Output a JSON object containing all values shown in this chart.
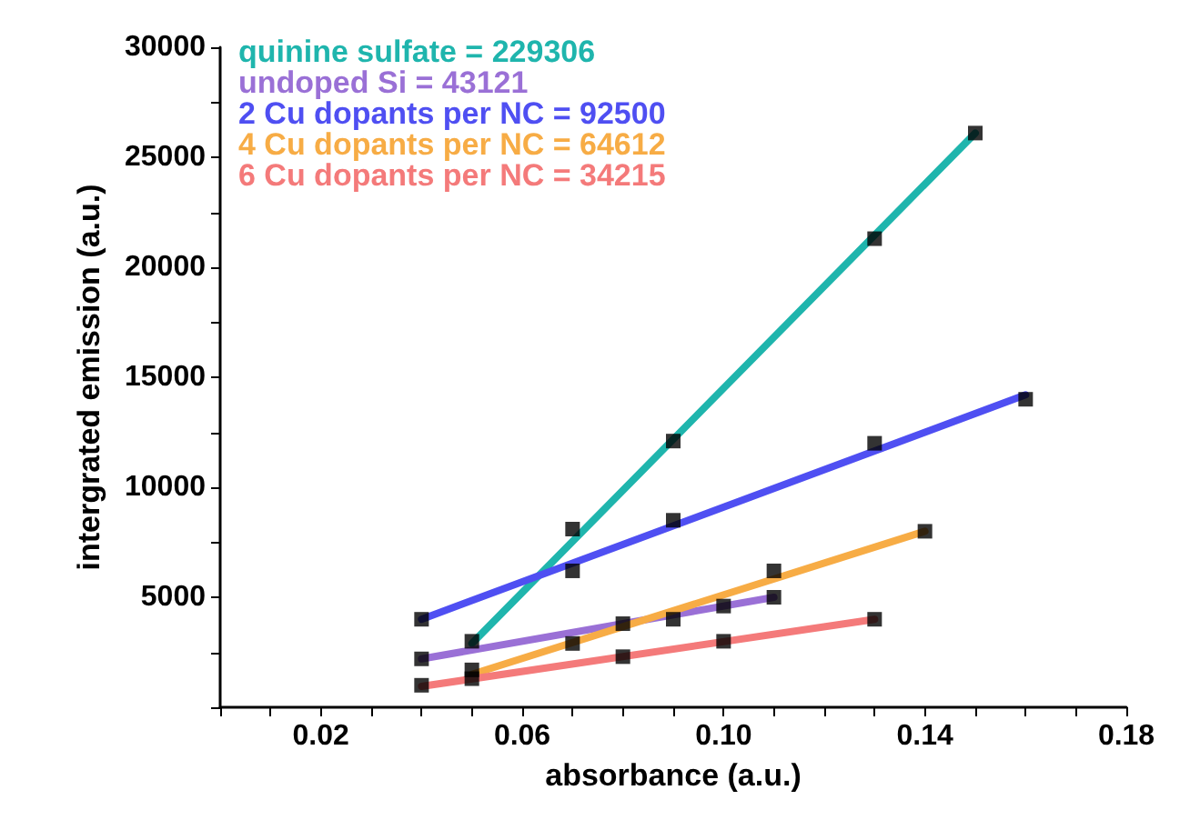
{
  "chart_data": {
    "type": "scatter",
    "xlabel": "absorbance (a.u.)",
    "ylabel": "intergrated emission (a.u.)",
    "xlim": [
      0,
      0.18
    ],
    "ylim": [
      0,
      30000
    ],
    "xticks": [
      {
        "value": 0,
        "label": null
      },
      {
        "value": 0.01,
        "label": null
      },
      "0.02",
      {
        "value": 0.03,
        "label": null
      },
      {
        "value": 0.04,
        "label": null
      },
      {
        "value": 0.05,
        "label": null
      },
      {
        "value": 0.06,
        "label": "0.06"
      },
      {
        "value": 0.07,
        "label": null
      },
      {
        "value": 0.08,
        "label": null
      },
      {
        "value": 0.09,
        "label": null
      },
      {
        "value": 0.1,
        "label": "0.10"
      },
      {
        "value": 0.11,
        "label": null
      },
      {
        "value": 0.12,
        "label": null
      },
      {
        "value": 0.13,
        "label": null
      },
      {
        "value": 0.14,
        "label": "0.14"
      },
      {
        "value": 0.15,
        "label": null
      },
      {
        "value": 0.16,
        "label": null
      },
      {
        "value": 0.17,
        "label": null
      },
      {
        "value": 0.18,
        "label": "0.18"
      }
    ],
    "yticks": [
      {
        "value": 0,
        "label": null
      },
      {
        "value": 2500,
        "label": null
      },
      5000,
      {
        "value": 7500,
        "label": null
      },
      10000,
      {
        "value": 12500,
        "label": null
      },
      15000,
      {
        "value": 17500,
        "label": null
      },
      20000,
      {
        "value": 22500,
        "label": null
      },
      25000,
      {
        "value": 27500,
        "label": null
      },
      30000
    ],
    "grid": false,
    "legend": "top left",
    "marker": "square",
    "series": [
      {
        "type": "line",
        "name": "quinine sulfate = 229306",
        "color": "#1fb5ad",
        "marker": "none",
        "x": [
          0.05,
          0.15
        ],
        "values": [
          2900,
          26100
        ]
      },
      {
        "type": "line",
        "name": "undoped Si = 43121",
        "color": "#9a70d6",
        "marker": "none",
        "x": [
          0.04,
          0.11
        ],
        "values": [
          2200,
          5000
        ]
      },
      {
        "type": "line",
        "name": "2 Cu dopants per NC = 92500",
        "color": "#4f4ff2",
        "marker": "none",
        "x": [
          0.04,
          0.16
        ],
        "values": [
          4000,
          14200
        ]
      },
      {
        "type": "line",
        "name": "4 Cu dopants per NC = 64612",
        "color": "#f7ac45",
        "marker": "none",
        "x": [
          0.05,
          0.14
        ],
        "values": [
          1500,
          8000
        ]
      },
      {
        "type": "line",
        "name": "6 Cu dopants per NC = 34215",
        "color": "#f47a7a",
        "marker": "none",
        "x": [
          0.04,
          0.13
        ],
        "values": [
          950,
          4000
        ]
      },
      {
        "color": "#000000",
        "x": [
          0.05,
          0.07,
          0.09,
          0.13,
          0.15
        ],
        "values": [
          3000,
          8100,
          12100,
          21300,
          26100
        ]
      },
      {
        "color": "#000000",
        "x": [
          0.04,
          0.08,
          0.1,
          0.11
        ],
        "values": [
          2200,
          3800,
          4600,
          5000
        ]
      },
      {
        "color": "#000000",
        "x": [
          0.04,
          0.07,
          0.09,
          0.13,
          0.16
        ],
        "values": [
          4000,
          6200,
          8500,
          12000,
          14000
        ]
      },
      {
        "color": "#000000",
        "x": [
          0.05,
          0.07,
          0.09,
          0.11,
          0.14
        ],
        "values": [
          1700,
          2900,
          4000,
          6200,
          8000
        ]
      },
      {
        "color": "#000000",
        "x": [
          0.04,
          0.05,
          0.08,
          0.1,
          0.13
        ],
        "values": [
          1000,
          1300,
          2300,
          3000,
          4000
        ]
      }
    ]
  }
}
